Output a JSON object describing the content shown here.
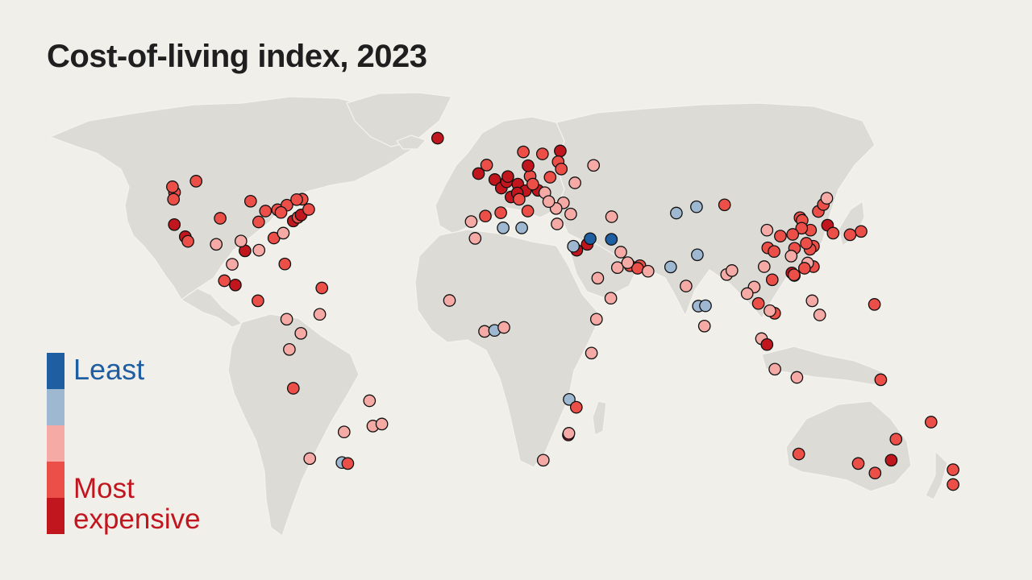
{
  "title": "Cost-of-living index, 2023",
  "legend": {
    "least_label": "Least",
    "most_label": "Most expensive",
    "levels": [
      {
        "level": 1,
        "color": "#1f5ea0"
      },
      {
        "level": 2,
        "color": "#9fb8d2"
      },
      {
        "level": 3,
        "color": "#f5aaa6"
      },
      {
        "level": 4,
        "color": "#ec4e48"
      },
      {
        "level": 5,
        "color": "#c2161f"
      }
    ]
  },
  "colors": {
    "background": "#f0efea",
    "land": "#dcdbd6",
    "borders": "#f4f3ef",
    "dot_outline": "#111111"
  },
  "map": {
    "projection": "robinson-like world map",
    "note_on_levels": "1 = least expensive, 5 = most expensive",
    "cities": [
      {
        "lon": -122.4,
        "lat": 37.8,
        "level": 5
      },
      {
        "lon": -118.2,
        "lat": 34.1,
        "level": 5
      },
      {
        "lon": -117.2,
        "lat": 32.7,
        "level": 4
      },
      {
        "lon": -122.3,
        "lat": 47.6,
        "level": 4
      },
      {
        "lon": -122.7,
        "lat": 45.5,
        "level": 4
      },
      {
        "lon": -123.1,
        "lat": 49.3,
        "level": 4
      },
      {
        "lon": -114.1,
        "lat": 51.0,
        "level": 4
      },
      {
        "lon": -104.9,
        "lat": 39.7,
        "level": 4
      },
      {
        "lon": -95.4,
        "lat": 29.8,
        "level": 5
      },
      {
        "lon": -97.0,
        "lat": 32.8,
        "level": 3
      },
      {
        "lon": -87.6,
        "lat": 41.9,
        "level": 4
      },
      {
        "lon": -83.0,
        "lat": 42.3,
        "level": 4
      },
      {
        "lon": -84.4,
        "lat": 33.7,
        "level": 4
      },
      {
        "lon": -80.2,
        "lat": 25.8,
        "level": 4
      },
      {
        "lon": -77.0,
        "lat": 38.9,
        "level": 5
      },
      {
        "lon": -75.2,
        "lat": 40.0,
        "level": 4
      },
      {
        "lon": -74.0,
        "lat": 40.7,
        "level": 5
      },
      {
        "lon": -71.1,
        "lat": 42.4,
        "level": 4
      },
      {
        "lon": -79.4,
        "lat": 43.7,
        "level": 4
      },
      {
        "lon": -73.6,
        "lat": 45.5,
        "level": 4
      },
      {
        "lon": -75.7,
        "lat": 45.4,
        "level": 4
      },
      {
        "lon": -81.7,
        "lat": 41.5,
        "level": 4
      },
      {
        "lon": -90.2,
        "lat": 38.6,
        "level": 4
      },
      {
        "lon": -93.3,
        "lat": 44.9,
        "level": 4
      },
      {
        "lon": -80.8,
        "lat": 35.2,
        "level": 3
      },
      {
        "lon": -90.1,
        "lat": 30.0,
        "level": 3
      },
      {
        "lon": -106.4,
        "lat": 31.8,
        "level": 3
      },
      {
        "lon": -99.1,
        "lat": 19.4,
        "level": 5
      },
      {
        "lon": -103.3,
        "lat": 20.7,
        "level": 4
      },
      {
        "lon": -100.3,
        "lat": 25.7,
        "level": 3
      },
      {
        "lon": -90.5,
        "lat": 14.6,
        "level": 4
      },
      {
        "lon": -79.5,
        "lat": 9.0,
        "level": 3
      },
      {
        "lon": -66.1,
        "lat": 18.5,
        "level": 4
      },
      {
        "lon": -74.1,
        "lat": 4.7,
        "level": 3
      },
      {
        "lon": -78.5,
        "lat": -0.2,
        "level": 3
      },
      {
        "lon": -77.0,
        "lat": -12.0,
        "level": 4
      },
      {
        "lon": -66.9,
        "lat": 10.5,
        "level": 3
      },
      {
        "lon": -47.9,
        "lat": -15.8,
        "level": 3
      },
      {
        "lon": -46.6,
        "lat": -23.5,
        "level": 3
      },
      {
        "lon": -43.2,
        "lat": -22.9,
        "level": 3
      },
      {
        "lon": -70.7,
        "lat": -33.4,
        "level": 3
      },
      {
        "lon": -58.4,
        "lat": -34.6,
        "level": 2
      },
      {
        "lon": -56.2,
        "lat": -34.9,
        "level": 4
      },
      {
        "lon": -57.6,
        "lat": -25.3,
        "level": 3
      },
      {
        "lon": -21.9,
        "lat": 64.1,
        "level": 5
      },
      {
        "lon": -0.1,
        "lat": 51.5,
        "level": 5
      },
      {
        "lon": -3.2,
        "lat": 55.9,
        "level": 4
      },
      {
        "lon": -6.3,
        "lat": 53.3,
        "level": 5
      },
      {
        "lon": 2.4,
        "lat": 48.9,
        "level": 5
      },
      {
        "lon": 4.4,
        "lat": 50.8,
        "level": 5
      },
      {
        "lon": 4.9,
        "lat": 52.4,
        "level": 5
      },
      {
        "lon": 8.7,
        "lat": 50.1,
        "level": 5
      },
      {
        "lon": 13.4,
        "lat": 52.5,
        "level": 4
      },
      {
        "lon": 11.6,
        "lat": 48.1,
        "level": 5
      },
      {
        "lon": 6.1,
        "lat": 46.2,
        "level": 5
      },
      {
        "lon": 8.5,
        "lat": 47.4,
        "level": 5
      },
      {
        "lon": 16.4,
        "lat": 48.2,
        "level": 5
      },
      {
        "lon": 12.5,
        "lat": 41.9,
        "level": 4
      },
      {
        "lon": 9.2,
        "lat": 45.5,
        "level": 4
      },
      {
        "lon": -3.7,
        "lat": 40.4,
        "level": 4
      },
      {
        "lon": 2.2,
        "lat": 41.4,
        "level": 4
      },
      {
        "lon": -9.1,
        "lat": 38.7,
        "level": 3
      },
      {
        "lon": 10.8,
        "lat": 59.9,
        "level": 4
      },
      {
        "lon": 18.1,
        "lat": 59.3,
        "level": 4
      },
      {
        "lon": 24.9,
        "lat": 60.2,
        "level": 5
      },
      {
        "lon": 12.6,
        "lat": 55.7,
        "level": 5
      },
      {
        "lon": 21.0,
        "lat": 52.2,
        "level": 4
      },
      {
        "lon": 14.4,
        "lat": 50.1,
        "level": 4
      },
      {
        "lon": 19.0,
        "lat": 47.5,
        "level": 3
      },
      {
        "lon": 26.1,
        "lat": 44.4,
        "level": 3
      },
      {
        "lon": 23.3,
        "lat": 42.7,
        "level": 3
      },
      {
        "lon": 23.7,
        "lat": 38.0,
        "level": 3
      },
      {
        "lon": 20.5,
        "lat": 44.8,
        "level": 3
      },
      {
        "lon": 28.9,
        "lat": 41.0,
        "level": 3
      },
      {
        "lon": 30.5,
        "lat": 50.5,
        "level": 3
      },
      {
        "lon": 37.6,
        "lat": 55.8,
        "level": 3
      },
      {
        "lon": 24.1,
        "lat": 56.9,
        "level": 4
      },
      {
        "lon": 25.3,
        "lat": 54.7,
        "level": 4
      },
      {
        "lon": 3.1,
        "lat": 36.8,
        "level": 2
      },
      {
        "lon": 10.2,
        "lat": 36.8,
        "level": 2
      },
      {
        "lon": -7.6,
        "lat": 33.6,
        "level": 3
      },
      {
        "lon": 31.2,
        "lat": 30.0,
        "level": 5
      },
      {
        "lon": 29.9,
        "lat": 31.2,
        "level": 2
      },
      {
        "lon": 35.2,
        "lat": 31.8,
        "level": 5
      },
      {
        "lon": 44.4,
        "lat": 33.3,
        "level": 1
      },
      {
        "lon": 36.3,
        "lat": 33.5,
        "level": 1
      },
      {
        "lon": 44.5,
        "lat": 40.2,
        "level": 3
      },
      {
        "lon": 69.2,
        "lat": 41.3,
        "level": 2
      },
      {
        "lon": 76.9,
        "lat": 43.2,
        "level": 2
      },
      {
        "lon": 46.7,
        "lat": 24.7,
        "level": 3
      },
      {
        "lon": 51.5,
        "lat": 25.3,
        "level": 4
      },
      {
        "lon": 55.3,
        "lat": 25.3,
        "level": 4
      },
      {
        "lon": 54.4,
        "lat": 24.5,
        "level": 4
      },
      {
        "lon": 58.4,
        "lat": 23.6,
        "level": 3
      },
      {
        "lon": 50.6,
        "lat": 26.2,
        "level": 3
      },
      {
        "lon": 48.0,
        "lat": 29.4,
        "level": 3
      },
      {
        "lon": 39.2,
        "lat": 21.5,
        "level": 3
      },
      {
        "lon": 44.2,
        "lat": 15.4,
        "level": 3
      },
      {
        "lon": 67.0,
        "lat": 24.9,
        "level": 2
      },
      {
        "lon": 77.2,
        "lat": 28.6,
        "level": 2
      },
      {
        "lon": 72.9,
        "lat": 19.1,
        "level": 3
      },
      {
        "lon": 77.6,
        "lat": 13.0,
        "level": 2
      },
      {
        "lon": 80.3,
        "lat": 13.1,
        "level": 2
      },
      {
        "lon": 88.4,
        "lat": 22.6,
        "level": 3
      },
      {
        "lon": 90.4,
        "lat": 23.8,
        "level": 3
      },
      {
        "lon": 79.9,
        "lat": 6.9,
        "level": 3
      },
      {
        "lon": 100.5,
        "lat": 13.8,
        "level": 4
      },
      {
        "lon": 98.9,
        "lat": 18.8,
        "level": 3
      },
      {
        "lon": 96.2,
        "lat": 16.8,
        "level": 3
      },
      {
        "lon": 105.8,
        "lat": 21.0,
        "level": 4
      },
      {
        "lon": 106.7,
        "lat": 10.8,
        "level": 4
      },
      {
        "lon": 104.9,
        "lat": 11.6,
        "level": 3
      },
      {
        "lon": 101.7,
        "lat": 3.1,
        "level": 3
      },
      {
        "lon": 103.8,
        "lat": 1.3,
        "level": 5
      },
      {
        "lon": 106.8,
        "lat": -6.2,
        "level": 3
      },
      {
        "lon": 115.2,
        "lat": -8.7,
        "level": 3
      },
      {
        "lon": 121.0,
        "lat": 14.6,
        "level": 3
      },
      {
        "lon": 123.9,
        "lat": 10.3,
        "level": 3
      },
      {
        "lon": 114.2,
        "lat": 22.3,
        "level": 5
      },
      {
        "lon": 113.3,
        "lat": 23.1,
        "level": 5
      },
      {
        "lon": 114.1,
        "lat": 22.5,
        "level": 4
      },
      {
        "lon": 121.5,
        "lat": 25.0,
        "level": 4
      },
      {
        "lon": 121.5,
        "lat": 31.2,
        "level": 4
      },
      {
        "lon": 120.2,
        "lat": 30.3,
        "level": 4
      },
      {
        "lon": 118.8,
        "lat": 32.1,
        "level": 4
      },
      {
        "lon": 116.4,
        "lat": 39.9,
        "level": 4
      },
      {
        "lon": 117.2,
        "lat": 39.1,
        "level": 4
      },
      {
        "lon": 123.4,
        "lat": 41.8,
        "level": 4
      },
      {
        "lon": 125.3,
        "lat": 43.9,
        "level": 4
      },
      {
        "lon": 126.6,
        "lat": 45.8,
        "level": 3
      },
      {
        "lon": 104.1,
        "lat": 30.7,
        "level": 4
      },
      {
        "lon": 106.5,
        "lat": 29.6,
        "level": 4
      },
      {
        "lon": 108.9,
        "lat": 34.3,
        "level": 4
      },
      {
        "lon": 114.3,
        "lat": 30.6,
        "level": 4
      },
      {
        "lon": 113.0,
        "lat": 28.2,
        "level": 3
      },
      {
        "lon": 119.3,
        "lat": 26.1,
        "level": 3
      },
      {
        "lon": 118.1,
        "lat": 24.5,
        "level": 4
      },
      {
        "lon": 120.4,
        "lat": 36.1,
        "level": 4
      },
      {
        "lon": 117.0,
        "lat": 36.7,
        "level": 4
      },
      {
        "lon": 102.7,
        "lat": 25.0,
        "level": 3
      },
      {
        "lon": 113.6,
        "lat": 34.8,
        "level": 4
      },
      {
        "lon": 103.8,
        "lat": 36.1,
        "level": 3
      },
      {
        "lon": 87.6,
        "lat": 43.8,
        "level": 4
      },
      {
        "lon": 126.9,
        "lat": 37.6,
        "level": 5
      },
      {
        "lon": 129.0,
        "lat": 35.2,
        "level": 4
      },
      {
        "lon": 139.7,
        "lat": 35.7,
        "level": 4
      },
      {
        "lon": 135.5,
        "lat": 34.7,
        "level": 4
      },
      {
        "lon": 144.8,
        "lat": 13.5,
        "level": 4
      },
      {
        "lon": 151.2,
        "lat": -33.9,
        "level": 5
      },
      {
        "lon": 153.0,
        "lat": -27.5,
        "level": 4
      },
      {
        "lon": 145.0,
        "lat": -37.8,
        "level": 4
      },
      {
        "lon": 138.6,
        "lat": -34.9,
        "level": 4
      },
      {
        "lon": 115.9,
        "lat": -32.0,
        "level": 4
      },
      {
        "lon": 147.2,
        "lat": -9.4,
        "level": 4
      },
      {
        "lon": 174.8,
        "lat": -36.8,
        "level": 4
      },
      {
        "lon": 174.8,
        "lat": -41.3,
        "level": 4
      },
      {
        "lon": 166.4,
        "lat": -22.3,
        "level": 4
      },
      {
        "lon": -17.4,
        "lat": 14.7,
        "level": 3
      },
      {
        "lon": -4.0,
        "lat": 5.3,
        "level": 3
      },
      {
        "lon": -0.2,
        "lat": 5.6,
        "level": 2
      },
      {
        "lon": 3.4,
        "lat": 6.5,
        "level": 3
      },
      {
        "lon": 38.7,
        "lat": 9.0,
        "level": 3
      },
      {
        "lon": 36.8,
        "lat": -1.3,
        "level": 3
      },
      {
        "lon": 28.3,
        "lat": -15.4,
        "level": 2
      },
      {
        "lon": 31.0,
        "lat": -17.8,
        "level": 4
      },
      {
        "lon": 28.0,
        "lat": -26.2,
        "level": 5
      },
      {
        "lon": 28.2,
        "lat": -25.7,
        "level": 3
      },
      {
        "lon": 18.4,
        "lat": -33.9,
        "level": 3
      }
    ]
  }
}
